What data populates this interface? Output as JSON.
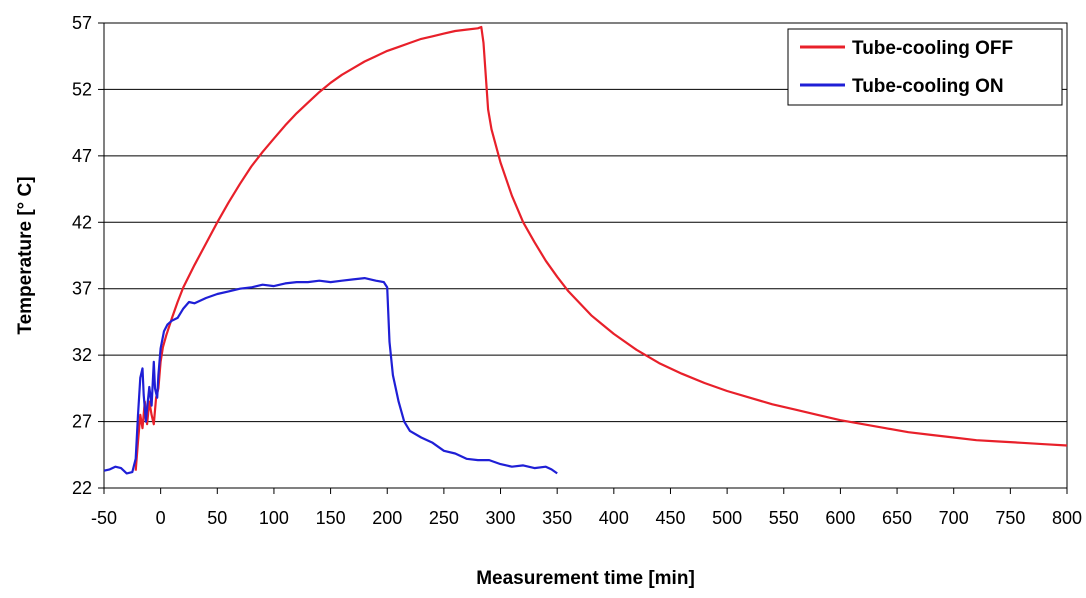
{
  "chart_data": {
    "type": "line",
    "title": "",
    "xlabel": "Measurement time [min]",
    "ylabel": "Temperature [° C]",
    "xlim": [
      -50,
      800
    ],
    "ylim": [
      22,
      57
    ],
    "x_ticks": [
      "-50",
      "0",
      "50",
      "100",
      "150",
      "200",
      "250",
      "300",
      "350",
      "400",
      "450",
      "500",
      "550",
      "600",
      "650",
      "700",
      "750",
      "800"
    ],
    "y_ticks": [
      "22",
      "27",
      "32",
      "37",
      "42",
      "47",
      "52",
      "57"
    ],
    "grid": "horizontal",
    "legend_position": "top-right",
    "series": [
      {
        "name": "Tube-cooling OFF",
        "color": "#e8202a",
        "points": [
          [
            -22,
            23.3
          ],
          [
            -20,
            25.5
          ],
          [
            -18,
            27.5
          ],
          [
            -16,
            26.5
          ],
          [
            -14,
            28.5
          ],
          [
            -12,
            26.8
          ],
          [
            -10,
            28.5
          ],
          [
            -8,
            27.5
          ],
          [
            -6,
            26.8
          ],
          [
            -4,
            28.8
          ],
          [
            -2,
            29.5
          ],
          [
            0,
            31.5
          ],
          [
            2,
            32.6
          ],
          [
            5,
            33.5
          ],
          [
            10,
            34.8
          ],
          [
            15,
            36.0
          ],
          [
            20,
            37.1
          ],
          [
            30,
            38.8
          ],
          [
            40,
            40.4
          ],
          [
            50,
            42.0
          ],
          [
            60,
            43.5
          ],
          [
            70,
            44.9
          ],
          [
            80,
            46.2
          ],
          [
            90,
            47.3
          ],
          [
            100,
            48.3
          ],
          [
            110,
            49.3
          ],
          [
            120,
            50.2
          ],
          [
            130,
            51.0
          ],
          [
            140,
            51.8
          ],
          [
            150,
            52.5
          ],
          [
            160,
            53.1
          ],
          [
            170,
            53.6
          ],
          [
            180,
            54.1
          ],
          [
            190,
            54.5
          ],
          [
            200,
            54.9
          ],
          [
            210,
            55.2
          ],
          [
            220,
            55.5
          ],
          [
            230,
            55.8
          ],
          [
            240,
            56.0
          ],
          [
            250,
            56.2
          ],
          [
            260,
            56.4
          ],
          [
            270,
            56.5
          ],
          [
            280,
            56.6
          ],
          [
            283,
            56.7
          ],
          [
            285,
            55.5
          ],
          [
            287,
            53.0
          ],
          [
            289,
            50.5
          ],
          [
            292,
            49.0
          ],
          [
            300,
            46.5
          ],
          [
            310,
            44.0
          ],
          [
            320,
            42.0
          ],
          [
            330,
            40.5
          ],
          [
            340,
            39.1
          ],
          [
            350,
            37.9
          ],
          [
            360,
            36.8
          ],
          [
            370,
            35.9
          ],
          [
            380,
            35.0
          ],
          [
            390,
            34.3
          ],
          [
            400,
            33.6
          ],
          [
            420,
            32.4
          ],
          [
            440,
            31.4
          ],
          [
            460,
            30.6
          ],
          [
            480,
            29.9
          ],
          [
            500,
            29.3
          ],
          [
            520,
            28.8
          ],
          [
            540,
            28.3
          ],
          [
            560,
            27.9
          ],
          [
            580,
            27.5
          ],
          [
            600,
            27.1
          ],
          [
            620,
            26.8
          ],
          [
            640,
            26.5
          ],
          [
            660,
            26.2
          ],
          [
            680,
            26.0
          ],
          [
            700,
            25.8
          ],
          [
            720,
            25.6
          ],
          [
            740,
            25.5
          ],
          [
            760,
            25.4
          ],
          [
            780,
            25.3
          ],
          [
            800,
            25.2
          ]
        ]
      },
      {
        "name": "Tube-cooling ON",
        "color": "#1f1fd6",
        "points": [
          [
            -50,
            23.3
          ],
          [
            -45,
            23.4
          ],
          [
            -40,
            23.6
          ],
          [
            -35,
            23.5
          ],
          [
            -30,
            23.1
          ],
          [
            -25,
            23.2
          ],
          [
            -22,
            24.2
          ],
          [
            -20,
            27.5
          ],
          [
            -18,
            30.3
          ],
          [
            -16,
            31.0
          ],
          [
            -15,
            29.0
          ],
          [
            -13,
            27.0
          ],
          [
            -12,
            28.0
          ],
          [
            -10,
            29.6
          ],
          [
            -8,
            28.2
          ],
          [
            -6,
            31.5
          ],
          [
            -5,
            29.5
          ],
          [
            -3,
            28.8
          ],
          [
            -2,
            30.5
          ],
          [
            0,
            32.5
          ],
          [
            3,
            33.8
          ],
          [
            6,
            34.3
          ],
          [
            10,
            34.6
          ],
          [
            15,
            34.8
          ],
          [
            20,
            35.5
          ],
          [
            25,
            36.0
          ],
          [
            30,
            35.9
          ],
          [
            40,
            36.3
          ],
          [
            50,
            36.6
          ],
          [
            60,
            36.8
          ],
          [
            70,
            37.0
          ],
          [
            80,
            37.1
          ],
          [
            90,
            37.3
          ],
          [
            100,
            37.2
          ],
          [
            110,
            37.4
          ],
          [
            120,
            37.5
          ],
          [
            130,
            37.5
          ],
          [
            140,
            37.6
          ],
          [
            150,
            37.5
          ],
          [
            160,
            37.6
          ],
          [
            170,
            37.7
          ],
          [
            180,
            37.8
          ],
          [
            190,
            37.6
          ],
          [
            197,
            37.5
          ],
          [
            200,
            37.1
          ],
          [
            202,
            33.0
          ],
          [
            205,
            30.5
          ],
          [
            210,
            28.5
          ],
          [
            215,
            27.0
          ],
          [
            220,
            26.3
          ],
          [
            230,
            25.8
          ],
          [
            240,
            25.4
          ],
          [
            250,
            24.8
          ],
          [
            260,
            24.6
          ],
          [
            270,
            24.2
          ],
          [
            280,
            24.1
          ],
          [
            290,
            24.1
          ],
          [
            300,
            23.8
          ],
          [
            310,
            23.6
          ],
          [
            320,
            23.7
          ],
          [
            330,
            23.5
          ],
          [
            340,
            23.6
          ],
          [
            345,
            23.4
          ],
          [
            350,
            23.1
          ]
        ]
      }
    ]
  }
}
